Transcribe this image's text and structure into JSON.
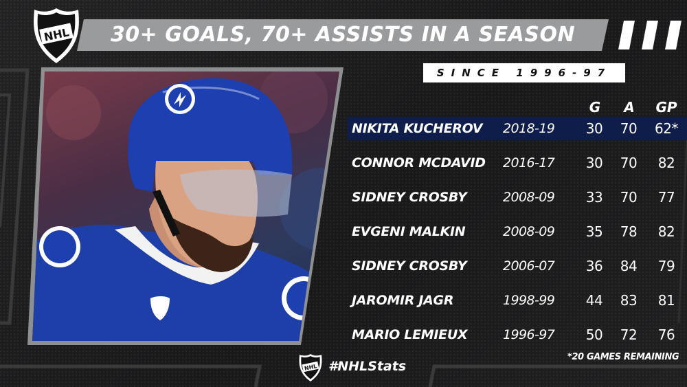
{
  "header": {
    "title": "30+ GOALS, 70+ ASSISTS IN A SEASON",
    "subtitle": "SINCE 1996-97",
    "logo_text": "NHL"
  },
  "columns": {
    "goals": "G",
    "assists": "A",
    "games_played": "GP"
  },
  "rows": [
    {
      "player": "NIKITA KUCHEROV",
      "season": "2018-19",
      "goals": "30",
      "assists": "70",
      "games_played": "62*",
      "highlighted": true
    },
    {
      "player": "CONNOR MCDAVID",
      "season": "2016-17",
      "goals": "30",
      "assists": "70",
      "games_played": "82"
    },
    {
      "player": "SIDNEY CROSBY",
      "season": "2008-09",
      "goals": "33",
      "assists": "70",
      "games_played": "77"
    },
    {
      "player": "EVGENI MALKIN",
      "season": "2008-09",
      "goals": "35",
      "assists": "78",
      "games_played": "82"
    },
    {
      "player": "SIDNEY CROSBY",
      "season": "2006-07",
      "goals": "36",
      "assists": "84",
      "games_played": "79"
    },
    {
      "player": "JAROMIR JAGR",
      "season": "1998-99",
      "goals": "44",
      "assists": "83",
      "games_played": "81"
    },
    {
      "player": "MARIO LEMIEUX",
      "season": "1996-97",
      "goals": "50",
      "assists": "72",
      "games_played": "76"
    }
  ],
  "footer": {
    "footnote": "*20 GAMES REMAINING",
    "hashtag": "#NHLStats"
  },
  "colors": {
    "highlight_row": "#0f1d4a",
    "title_bar": "#9a9b9d",
    "background": "#1b1b1c"
  }
}
